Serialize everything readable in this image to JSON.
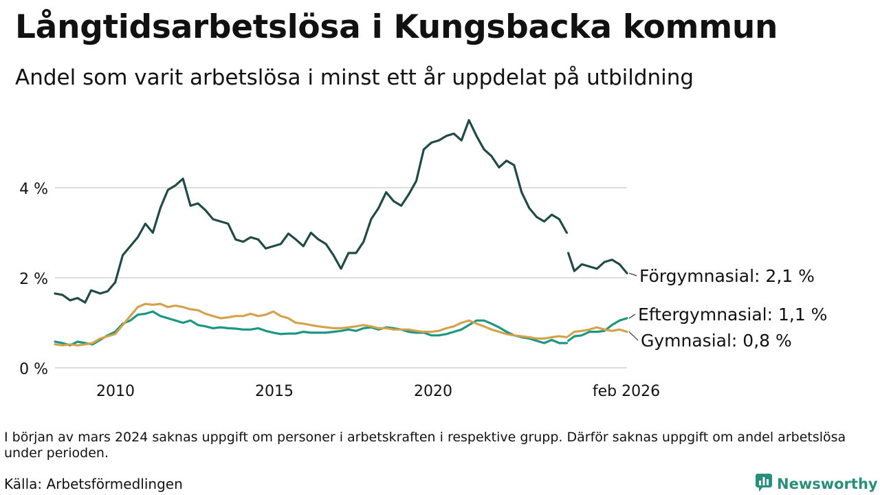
{
  "title": "Långtidsarbetslösa i Kungsbacka kommun",
  "subtitle": "Andel som varit arbetslösa i minst ett år uppdelat på utbildning",
  "note": "I början av mars 2024 saknas uppgift om personer i arbetskraften i respektive grupp. Därför saknas uppgift om andel arbetslösa under perioden.",
  "source": "Källa: Arbetsförmedlingen",
  "logo": {
    "text": "Newsworthy",
    "icon": "newsworthy-chart-bubble-icon"
  },
  "colors": {
    "forgymnasial": "#1f4a46",
    "eftergymnasial": "#1a9683",
    "gymnasial": "#d4a24c",
    "grid": "#dddddd",
    "text": "#111111",
    "brand": "#2a8f7a"
  },
  "chart_data": {
    "type": "line",
    "x_unit": "year (decimal)",
    "xlim": [
      2008.0,
      2026.15
    ],
    "ylim": [
      0,
      5.8
    ],
    "y_ticks": [
      {
        "value": 0,
        "label": "0 %"
      },
      {
        "value": 2,
        "label": "2 %"
      },
      {
        "value": 4,
        "label": "4 %"
      }
    ],
    "x_ticks": [
      {
        "value": 2010,
        "label": "2010"
      },
      {
        "value": 2015,
        "label": "2015"
      },
      {
        "value": 2020,
        "label": "2020"
      },
      {
        "value": 2026.1,
        "label": "feb 2026"
      }
    ],
    "gap": [
      2023.75,
      2024.6
    ],
    "grid": true,
    "series": [
      {
        "name": "Förgymnasial",
        "label": "Förgymnasial: 2,1 %",
        "color": "#1f4a46",
        "points": [
          [
            2008.0,
            1.65
          ],
          [
            2008.25,
            1.62
          ],
          [
            2008.5,
            1.5
          ],
          [
            2008.75,
            1.55
          ],
          [
            2009.0,
            1.45
          ],
          [
            2009.2,
            1.72
          ],
          [
            2009.5,
            1.65
          ],
          [
            2009.75,
            1.7
          ],
          [
            2010.0,
            1.9
          ],
          [
            2010.25,
            2.5
          ],
          [
            2010.5,
            2.7
          ],
          [
            2010.75,
            2.9
          ],
          [
            2011.0,
            3.2
          ],
          [
            2011.25,
            3.0
          ],
          [
            2011.5,
            3.55
          ],
          [
            2011.75,
            3.95
          ],
          [
            2012.0,
            4.05
          ],
          [
            2012.25,
            4.2
          ],
          [
            2012.5,
            3.6
          ],
          [
            2012.75,
            3.65
          ],
          [
            2013.0,
            3.5
          ],
          [
            2013.25,
            3.3
          ],
          [
            2013.5,
            3.25
          ],
          [
            2013.75,
            3.2
          ],
          [
            2014.0,
            2.85
          ],
          [
            2014.25,
            2.8
          ],
          [
            2014.5,
            2.9
          ],
          [
            2014.75,
            2.85
          ],
          [
            2015.0,
            2.65
          ],
          [
            2015.25,
            2.7
          ],
          [
            2015.5,
            2.75
          ],
          [
            2015.75,
            2.98
          ],
          [
            2016.0,
            2.85
          ],
          [
            2016.25,
            2.7
          ],
          [
            2016.5,
            3.0
          ],
          [
            2016.75,
            2.85
          ],
          [
            2017.0,
            2.75
          ],
          [
            2017.25,
            2.5
          ],
          [
            2017.5,
            2.2
          ],
          [
            2017.75,
            2.55
          ],
          [
            2018.0,
            2.55
          ],
          [
            2018.25,
            2.8
          ],
          [
            2018.5,
            3.3
          ],
          [
            2018.75,
            3.55
          ],
          [
            2019.0,
            3.9
          ],
          [
            2019.25,
            3.7
          ],
          [
            2019.5,
            3.6
          ],
          [
            2019.75,
            3.85
          ],
          [
            2020.0,
            4.15
          ],
          [
            2020.25,
            4.85
          ],
          [
            2020.5,
            5.0
          ],
          [
            2020.75,
            5.05
          ],
          [
            2021.0,
            5.15
          ],
          [
            2021.25,
            5.2
          ],
          [
            2021.5,
            5.05
          ],
          [
            2021.75,
            5.5
          ],
          [
            2022.0,
            5.15
          ],
          [
            2022.25,
            4.85
          ],
          [
            2022.5,
            4.7
          ],
          [
            2022.75,
            4.45
          ],
          [
            2023.0,
            4.6
          ],
          [
            2023.25,
            4.5
          ],
          [
            2023.5,
            3.9
          ],
          [
            2023.75,
            3.55
          ],
          [
            2024.0,
            3.35
          ],
          [
            2024.25,
            3.25
          ],
          [
            2024.5,
            3.4
          ],
          [
            2024.75,
            3.3
          ],
          [
            2025.0,
            3.0
          ],
          [
            2025.05,
            2.55
          ],
          [
            2025.25,
            2.15
          ],
          [
            2025.5,
            2.3
          ],
          [
            2025.75,
            2.25
          ],
          [
            2026.0,
            2.2
          ],
          [
            2026.25,
            2.35
          ],
          [
            2026.5,
            2.4
          ],
          [
            2026.75,
            2.3
          ],
          [
            2027.0,
            2.1
          ]
        ]
      },
      {
        "name": "Eftergymnasial",
        "label": "Eftergymnasial: 1,1 %",
        "color": "#1a9683",
        "points": [
          [
            2008.0,
            0.58
          ],
          [
            2008.25,
            0.55
          ],
          [
            2008.5,
            0.5
          ],
          [
            2008.75,
            0.58
          ],
          [
            2009.0,
            0.55
          ],
          [
            2009.25,
            0.52
          ],
          [
            2009.5,
            0.62
          ],
          [
            2009.75,
            0.72
          ],
          [
            2010.0,
            0.8
          ],
          [
            2010.25,
            0.98
          ],
          [
            2010.5,
            1.05
          ],
          [
            2010.75,
            1.18
          ],
          [
            2011.0,
            1.2
          ],
          [
            2011.25,
            1.25
          ],
          [
            2011.5,
            1.15
          ],
          [
            2011.75,
            1.1
          ],
          [
            2012.0,
            1.05
          ],
          [
            2012.25,
            1.0
          ],
          [
            2012.5,
            1.05
          ],
          [
            2012.75,
            0.95
          ],
          [
            2013.0,
            0.92
          ],
          [
            2013.25,
            0.88
          ],
          [
            2013.5,
            0.9
          ],
          [
            2013.75,
            0.88
          ],
          [
            2014.0,
            0.87
          ],
          [
            2014.25,
            0.85
          ],
          [
            2014.5,
            0.85
          ],
          [
            2014.75,
            0.88
          ],
          [
            2015.0,
            0.82
          ],
          [
            2015.25,
            0.78
          ],
          [
            2015.5,
            0.75
          ],
          [
            2015.75,
            0.76
          ],
          [
            2016.0,
            0.76
          ],
          [
            2016.25,
            0.8
          ],
          [
            2016.5,
            0.78
          ],
          [
            2016.75,
            0.78
          ],
          [
            2017.0,
            0.78
          ],
          [
            2017.25,
            0.8
          ],
          [
            2017.5,
            0.82
          ],
          [
            2017.75,
            0.85
          ],
          [
            2018.0,
            0.82
          ],
          [
            2018.25,
            0.88
          ],
          [
            2018.5,
            0.9
          ],
          [
            2018.75,
            0.85
          ],
          [
            2019.0,
            0.9
          ],
          [
            2019.25,
            0.88
          ],
          [
            2019.5,
            0.85
          ],
          [
            2019.75,
            0.8
          ],
          [
            2020.0,
            0.78
          ],
          [
            2020.25,
            0.78
          ],
          [
            2020.5,
            0.72
          ],
          [
            2020.75,
            0.72
          ],
          [
            2021.0,
            0.75
          ],
          [
            2021.25,
            0.8
          ],
          [
            2021.5,
            0.85
          ],
          [
            2021.75,
            0.95
          ],
          [
            2022.0,
            1.05
          ],
          [
            2022.25,
            1.05
          ],
          [
            2022.5,
            0.98
          ],
          [
            2022.75,
            0.9
          ],
          [
            2023.0,
            0.8
          ],
          [
            2023.25,
            0.72
          ],
          [
            2023.5,
            0.68
          ],
          [
            2023.75,
            0.65
          ],
          [
            2024.0,
            0.6
          ],
          [
            2024.25,
            0.55
          ],
          [
            2024.5,
            0.62
          ],
          [
            2024.75,
            0.55
          ],
          [
            2025.0,
            0.55
          ],
          [
            2025.05,
            0.6
          ],
          [
            2025.25,
            0.7
          ],
          [
            2025.5,
            0.72
          ],
          [
            2025.75,
            0.8
          ],
          [
            2026.0,
            0.8
          ],
          [
            2026.25,
            0.82
          ],
          [
            2026.5,
            0.95
          ],
          [
            2026.75,
            1.05
          ],
          [
            2027.0,
            1.1
          ]
        ]
      },
      {
        "name": "Gymnasial",
        "label": "Gymnasial: 0,8 %",
        "color": "#d4a24c",
        "points": [
          [
            2008.0,
            0.52
          ],
          [
            2008.25,
            0.5
          ],
          [
            2008.5,
            0.52
          ],
          [
            2008.75,
            0.5
          ],
          [
            2009.0,
            0.52
          ],
          [
            2009.25,
            0.55
          ],
          [
            2009.5,
            0.65
          ],
          [
            2009.75,
            0.7
          ],
          [
            2010.0,
            0.75
          ],
          [
            2010.25,
            0.95
          ],
          [
            2010.5,
            1.15
          ],
          [
            2010.75,
            1.35
          ],
          [
            2011.0,
            1.42
          ],
          [
            2011.25,
            1.4
          ],
          [
            2011.5,
            1.42
          ],
          [
            2011.75,
            1.35
          ],
          [
            2012.0,
            1.38
          ],
          [
            2012.25,
            1.35
          ],
          [
            2012.5,
            1.3
          ],
          [
            2012.75,
            1.28
          ],
          [
            2013.0,
            1.2
          ],
          [
            2013.25,
            1.15
          ],
          [
            2013.5,
            1.1
          ],
          [
            2013.75,
            1.12
          ],
          [
            2014.0,
            1.15
          ],
          [
            2014.25,
            1.15
          ],
          [
            2014.5,
            1.2
          ],
          [
            2014.75,
            1.15
          ],
          [
            2015.0,
            1.18
          ],
          [
            2015.25,
            1.25
          ],
          [
            2015.5,
            1.15
          ],
          [
            2015.75,
            1.1
          ],
          [
            2016.0,
            1.0
          ],
          [
            2016.25,
            0.98
          ],
          [
            2016.5,
            0.95
          ],
          [
            2016.75,
            0.92
          ],
          [
            2017.0,
            0.9
          ],
          [
            2017.25,
            0.88
          ],
          [
            2017.5,
            0.88
          ],
          [
            2017.75,
            0.9
          ],
          [
            2018.0,
            0.92
          ],
          [
            2018.25,
            0.95
          ],
          [
            2018.5,
            0.92
          ],
          [
            2018.75,
            0.88
          ],
          [
            2019.0,
            0.88
          ],
          [
            2019.25,
            0.85
          ],
          [
            2019.5,
            0.85
          ],
          [
            2019.75,
            0.85
          ],
          [
            2020.0,
            0.82
          ],
          [
            2020.25,
            0.8
          ],
          [
            2020.5,
            0.8
          ],
          [
            2020.75,
            0.82
          ],
          [
            2021.0,
            0.88
          ],
          [
            2021.25,
            0.92
          ],
          [
            2021.5,
            1.0
          ],
          [
            2021.75,
            1.05
          ],
          [
            2022.0,
            0.98
          ],
          [
            2022.25,
            0.92
          ],
          [
            2022.5,
            0.85
          ],
          [
            2022.75,
            0.8
          ],
          [
            2023.0,
            0.75
          ],
          [
            2023.25,
            0.72
          ],
          [
            2023.5,
            0.7
          ],
          [
            2023.75,
            0.68
          ],
          [
            2024.0,
            0.65
          ],
          [
            2024.25,
            0.65
          ],
          [
            2024.5,
            0.68
          ],
          [
            2024.75,
            0.7
          ],
          [
            2025.0,
            0.68
          ],
          [
            2025.05,
            0.7
          ],
          [
            2025.25,
            0.8
          ],
          [
            2025.5,
            0.82
          ],
          [
            2025.75,
            0.85
          ],
          [
            2026.0,
            0.9
          ],
          [
            2026.25,
            0.85
          ],
          [
            2026.5,
            0.82
          ],
          [
            2026.75,
            0.85
          ],
          [
            2027.0,
            0.8
          ]
        ]
      }
    ]
  }
}
